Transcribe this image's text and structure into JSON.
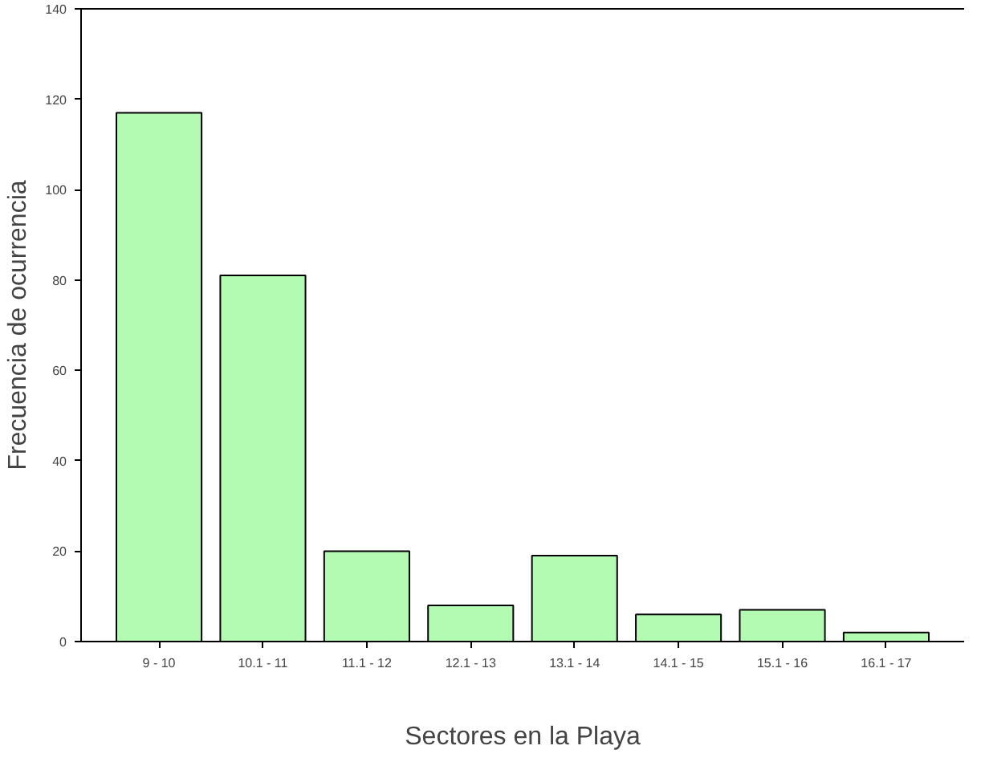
{
  "chart_data": {
    "type": "bar",
    "xlabel": "Sectores en la Playa",
    "ylabel": "Frecuencia de ocurrencia",
    "categories": [
      "9 - 10",
      "10.1 - 11",
      "11.1 - 12",
      "12.1 - 13",
      "13.1 - 14",
      "14.1 - 15",
      "15.1 - 16",
      "16.1 - 17"
    ],
    "values": [
      117,
      81,
      20,
      8,
      19,
      6,
      7,
      2
    ],
    "color": "#b3fbb3",
    "ylim": [
      0,
      140
    ],
    "yticks": [
      0,
      20,
      40,
      60,
      80,
      100,
      120,
      140
    ],
    "grid": false
  }
}
